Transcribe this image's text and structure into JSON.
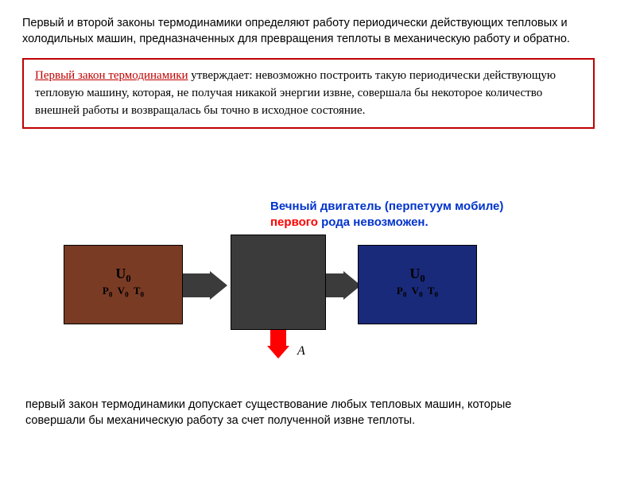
{
  "intro": "Первый  и второй  законы термодинамики     определяют работу периодически действующих тепловых и холодильных машин, предназначенных для превращения теплоты в механическую работу и обратно.",
  "lawBox": {
    "highlight": "Первый закон термодинамики",
    "rest": " утверждает: невозможно построить такую периодически действующую тепловую машину, которая, не получая никакой энергии извне, совершала бы некоторое количество внешней работы и возвращалась бы точно в исходное состояние."
  },
  "caption": {
    "line1a": "Вечный двигатель (перпетуум мобиле)",
    "line2_red": "первого",
    "line2_rest": " рода невозможен."
  },
  "stateBox": {
    "u": "U",
    "u_sub": "0",
    "p": "P",
    "p_sub": "0",
    "v": "V",
    "v_sub": "0",
    "t": "T",
    "t_sub": "0"
  },
  "colors": {
    "leftBox": "#7a3b25",
    "rightBox": "#1a2a7a",
    "machine": "#3b3b3b",
    "downArrow": "#ff0000",
    "lawBorder": "#c00000"
  },
  "work_label": "A",
  "bottom": "первый закон термодинамики допускает существование любых тепловых машин, которые совершали бы механическую работу за счет полученной извне теплоты."
}
